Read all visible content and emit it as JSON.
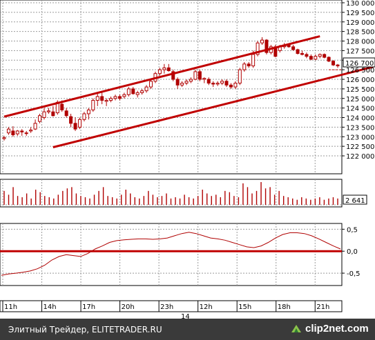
{
  "chart_data": [
    {
      "type": "candlestick",
      "title": "",
      "x_ticks": [
        "11h",
        "14h",
        "17h",
        "20h",
        "23h",
        "12h",
        "15h",
        "18h",
        "21h"
      ],
      "day_marker": "14",
      "y_ticks": [
        "122 000",
        "122 500",
        "123 000",
        "123 500",
        "124 000",
        "124 500",
        "125 000",
        "125 500",
        "126 000",
        "126 500",
        "127 000",
        "127 500",
        "128 000",
        "128 500",
        "129 000",
        "129 500",
        "130 000"
      ],
      "ylim": [
        122000,
        130000
      ],
      "last_price": "126 700",
      "trend_channel": {
        "upper": [
          [
            0,
            124050
          ],
          [
            71,
            128250
          ]
        ],
        "lower": [
          [
            11,
            122450
          ],
          [
            83,
            126650
          ]
        ]
      },
      "horizontal_line": 126500,
      "candles": [
        [
          122900,
          123050,
          122800,
          122950
        ],
        [
          123200,
          123500,
          123100,
          123400
        ],
        [
          123300,
          123550,
          123000,
          123100
        ],
        [
          123150,
          123350,
          123050,
          123300
        ],
        [
          123300,
          123400,
          123050,
          123250
        ],
        [
          123200,
          123300,
          123050,
          123200
        ],
        [
          123300,
          123500,
          123200,
          123350
        ],
        [
          123400,
          123900,
          123350,
          123700
        ],
        [
          123800,
          124200,
          123700,
          124100
        ],
        [
          124000,
          124500,
          123900,
          124300
        ],
        [
          124300,
          124500,
          124200,
          124350
        ],
        [
          124300,
          124600,
          124050,
          124100
        ],
        [
          124250,
          124900,
          124150,
          124800
        ],
        [
          124700,
          124900,
          124300,
          124400
        ],
        [
          124350,
          124500,
          124000,
          124100
        ],
        [
          124050,
          124200,
          123500,
          123700
        ],
        [
          123700,
          124000,
          123300,
          123400
        ],
        [
          123500,
          124000,
          123400,
          123900
        ],
        [
          123900,
          124300,
          123800,
          124200
        ],
        [
          124200,
          124500,
          123900,
          124400
        ],
        [
          124400,
          125000,
          124300,
          124900
        ],
        [
          124900,
          125300,
          124600,
          125100
        ],
        [
          125100,
          125300,
          124700,
          124900
        ],
        [
          124850,
          125000,
          124600,
          124900
        ],
        [
          124900,
          125100,
          124800,
          125000
        ],
        [
          125000,
          125200,
          124900,
          125100
        ],
        [
          125100,
          125200,
          124900,
          125000
        ],
        [
          125100,
          125300,
          125000,
          125200
        ],
        [
          125200,
          125600,
          125100,
          125500
        ],
        [
          125500,
          125600,
          125200,
          125250
        ],
        [
          125200,
          125400,
          125050,
          125300
        ],
        [
          125300,
          125500,
          125200,
          125400
        ],
        [
          125400,
          125700,
          125300,
          125600
        ],
        [
          125600,
          126000,
          125500,
          125900
        ],
        [
          125900,
          126400,
          125800,
          126300
        ],
        [
          126300,
          126600,
          126200,
          126500
        ],
        [
          126500,
          126800,
          126300,
          126600
        ],
        [
          126600,
          126800,
          126400,
          126450
        ],
        [
          126400,
          126500,
          125900,
          126000
        ],
        [
          126000,
          126100,
          125500,
          125700
        ],
        [
          125700,
          125900,
          125600,
          125800
        ],
        [
          125800,
          126000,
          125700,
          125900
        ],
        [
          125900,
          126100,
          125800,
          126000
        ],
        [
          126000,
          126500,
          125950,
          126400
        ],
        [
          126400,
          126500,
          125900,
          126000
        ],
        [
          126000,
          126100,
          125800,
          126050
        ],
        [
          126000,
          126100,
          125700,
          125800
        ],
        [
          125800,
          125900,
          125600,
          125750
        ],
        [
          125750,
          125900,
          125650,
          125800
        ],
        [
          125800,
          126000,
          125700,
          125900
        ],
        [
          125900,
          126000,
          125600,
          125700
        ],
        [
          125700,
          125800,
          125500,
          125600
        ],
        [
          125600,
          125900,
          125500,
          125800
        ],
        [
          125800,
          126600,
          125700,
          126500
        ],
        [
          126500,
          126900,
          126400,
          126800
        ],
        [
          126800,
          126900,
          126600,
          126700
        ],
        [
          126700,
          127500,
          126600,
          127300
        ],
        [
          127300,
          128000,
          127200,
          127900
        ],
        [
          127900,
          128200,
          127800,
          128050
        ],
        [
          128050,
          128100,
          127300,
          127400
        ],
        [
          127400,
          127800,
          127300,
          127700
        ],
        [
          127700,
          127800,
          127150,
          127200
        ],
        [
          127500,
          127800,
          127400,
          127700
        ],
        [
          127700,
          127900,
          127600,
          127800
        ],
        [
          127800,
          127850,
          127650,
          127700
        ],
        [
          127700,
          127800,
          127500,
          127550
        ],
        [
          127550,
          127600,
          127300,
          127350
        ],
        [
          127350,
          127500,
          127250,
          127300
        ],
        [
          127300,
          127400,
          127100,
          127200
        ],
        [
          127200,
          127300,
          127000,
          127050
        ],
        [
          127050,
          127300,
          127000,
          127200
        ],
        [
          127200,
          127350,
          127100,
          127300
        ],
        [
          127300,
          127350,
          127100,
          127150
        ],
        [
          127150,
          127200,
          126900,
          126950
        ],
        [
          126950,
          127000,
          126700,
          126750
        ],
        [
          126750,
          126800,
          126600,
          126700
        ]
      ]
    },
    {
      "type": "bar",
      "title": "",
      "last_value": "2 641",
      "values": [
        55,
        40,
        70,
        35,
        30,
        45,
        25,
        60,
        50,
        35,
        30,
        25,
        40,
        55,
        65,
        70,
        45,
        35,
        30,
        25,
        40,
        55,
        70,
        35,
        30,
        25,
        40,
        60,
        45,
        30,
        25,
        35,
        55,
        40,
        30,
        35,
        45,
        25,
        30,
        25,
        40,
        30,
        25,
        35,
        60,
        45,
        35,
        40,
        30,
        55,
        50,
        35,
        30,
        85,
        70,
        45,
        55,
        90,
        65,
        70,
        40,
        55,
        35,
        30,
        25,
        20,
        30,
        25,
        20,
        25,
        30,
        20,
        25,
        30,
        25
      ]
    },
    {
      "type": "line",
      "title": "",
      "y_ticks": [
        "0,5",
        "0,0",
        "-0,5"
      ],
      "ylim": [
        -0.75,
        0.6
      ],
      "zero_line": 0.0,
      "values": [
        -0.55,
        -0.52,
        -0.5,
        -0.48,
        -0.45,
        -0.4,
        -0.32,
        -0.2,
        -0.12,
        -0.08,
        -0.1,
        -0.12,
        -0.05,
        0.05,
        0.12,
        0.2,
        0.24,
        0.26,
        0.27,
        0.28,
        0.28,
        0.27,
        0.28,
        0.3,
        0.35,
        0.4,
        0.43,
        0.4,
        0.35,
        0.3,
        0.28,
        0.25,
        0.2,
        0.15,
        0.1,
        0.08,
        0.12,
        0.2,
        0.3,
        0.38,
        0.42,
        0.42,
        0.4,
        0.35,
        0.28,
        0.2,
        0.12,
        0.05
      ]
    }
  ],
  "footer": {
    "source": "Элитный Трейдер, ELITETRADER.RU",
    "brand": "clip2net.com"
  }
}
